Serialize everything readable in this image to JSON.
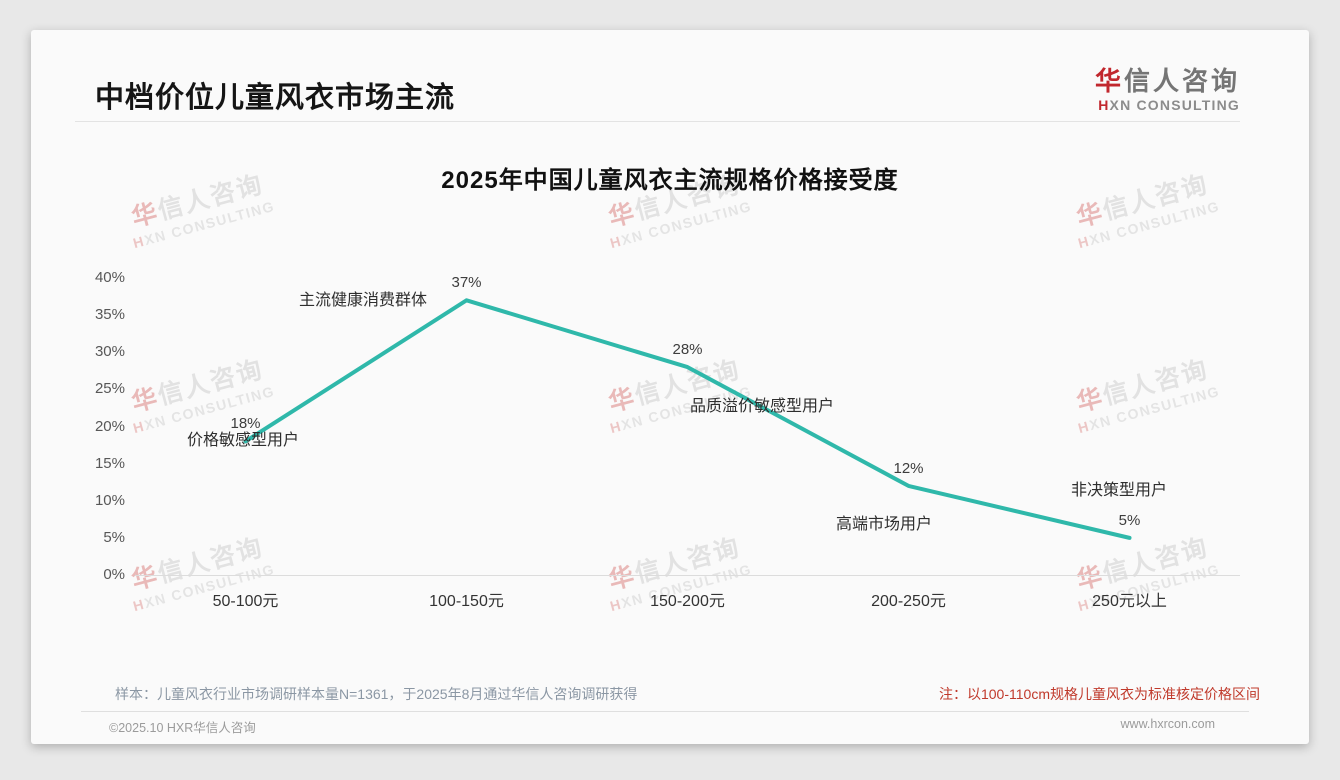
{
  "page": {
    "title": "中档价位儿童风衣市场主流",
    "logo": {
      "zh_accent": "华",
      "zh_rest": "信人咨询",
      "en_accent": "H",
      "en_rest": "XN CONSULTING"
    },
    "watermark": {
      "zh_accent": "华",
      "zh_rest": "信人咨询",
      "en_accent": "H",
      "en_rest": "XN CONSULTING"
    },
    "footer": {
      "sample_note": "样本：儿童风衣行业市场调研样本量N=1361，于2025年8月通过华信人咨询调研获得",
      "price_note": "注：以100-110cm规格儿童风衣为标准核定价格区间",
      "copyright": "©2025.10 HXR华信人咨询",
      "website": "www.hxrcon.com"
    },
    "colors": {
      "accent_red": "#c1272d",
      "line_teal": "#2fb8aa"
    }
  },
  "chart_data": {
    "type": "line",
    "title": "2025年中国儿童风衣主流规格价格接受度",
    "categories": [
      "50-100元",
      "100-150元",
      "150-200元",
      "200-250元",
      "250元以上"
    ],
    "values": [
      18,
      37,
      28,
      12,
      5
    ],
    "value_labels": [
      "18%",
      "37%",
      "28%",
      "12%",
      "5%"
    ],
    "annotations": [
      "价格敏感型用户",
      "主流健康消费群体",
      "品质溢价敏感型用户",
      "高端市场用户",
      "非决策型用户"
    ],
    "y_tick_values": [
      0,
      5,
      10,
      15,
      20,
      25,
      30,
      35,
      40
    ],
    "y_tick_labels": [
      "0%",
      "5%",
      "10%",
      "15%",
      "20%",
      "25%",
      "30%",
      "35%",
      "40%"
    ],
    "ylim": [
      0,
      40
    ],
    "xlabel": "",
    "ylabel": "",
    "grid": false,
    "legend": null,
    "line_color": "#2fb8aa"
  }
}
